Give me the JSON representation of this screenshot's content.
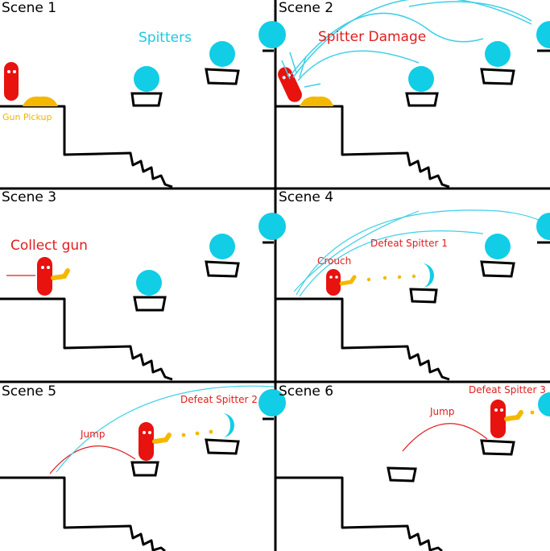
{
  "scenes": [
    {
      "title": "Scene 1",
      "labels": {
        "spitters": "Spitters",
        "gun_pickup": "Gun Pickup"
      }
    },
    {
      "title": "Scene 2",
      "labels": {
        "spitter_damage": "Spitter Damage"
      }
    },
    {
      "title": "Scene 3",
      "labels": {
        "collect_gun": "Collect gun"
      }
    },
    {
      "title": "Scene 4",
      "labels": {
        "crouch": "Crouch",
        "defeat": "Defeat Spitter 1"
      }
    },
    {
      "title": "Scene 5",
      "labels": {
        "jump": "Jump",
        "defeat": "Defeat Spitter 2"
      }
    },
    {
      "title": "Scene 6",
      "labels": {
        "jump": "Jump",
        "defeat": "Defeat Spitter 3"
      }
    }
  ],
  "colors": {
    "player": "#e8120f",
    "spitter": "#12cde6",
    "gun": "#f5b800",
    "trajectory_cyan": "#3fd0e6",
    "trajectory_red": "#e11d1d",
    "line": "#000000"
  }
}
